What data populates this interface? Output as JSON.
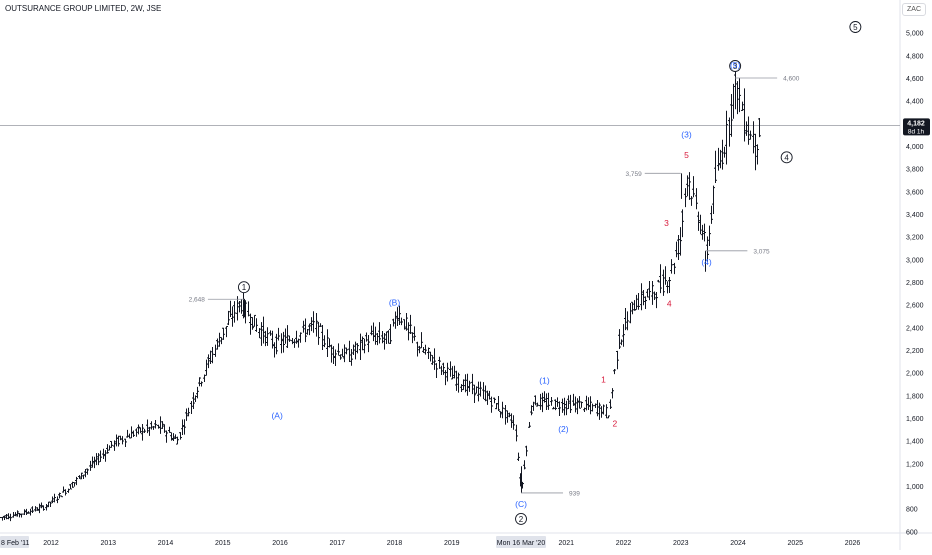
{
  "header": {
    "title": "OUTSURANCE GROUP LIMITED, 2W, JSE",
    "currency": "ZAC"
  },
  "colors": {
    "candle": "#131722",
    "blue_label": "#2962ff",
    "red_label": "#d81b3c",
    "axis_text": "#131722",
    "annotation_line": "#9598a1",
    "price_line": "#9598a1"
  },
  "chart_data": {
    "type": "line",
    "title": "OUTSURANCE GROUP LIMITED, 2W, JSE",
    "price_axis": {
      "ticks": [
        600,
        800,
        1000,
        1200,
        1400,
        1600,
        1800,
        2000,
        2200,
        2400,
        2600,
        2800,
        3000,
        3200,
        3400,
        3600,
        3800,
        4000,
        4200,
        4400,
        4600,
        4800,
        5000
      ],
      "tick_labels": [
        "600",
        "800",
        "1,000",
        "1,200",
        "1,400",
        "1,600",
        "1,800",
        "2,000",
        "2,200",
        "2,400",
        "2,600",
        "2,800",
        "3,000",
        "3,200",
        "3,400",
        "3,600",
        "3,800",
        "4,000",
        "4,200",
        "4,400",
        "4,600",
        "4,800",
        "5,000"
      ],
      "ylim": [
        600,
        5200
      ]
    },
    "time_axis": {
      "xlim": [
        2011.08,
        2027.4
      ],
      "ticks": [
        2012,
        2013,
        2014,
        2015,
        2016,
        2017,
        2018,
        2019,
        2021,
        2022,
        2023,
        2024,
        2025,
        2026
      ],
      "tick_labels": [
        "2012",
        "2013",
        "2014",
        "2015",
        "2016",
        "2017",
        "2018",
        "2019",
        "2021",
        "2022",
        "2023",
        "2024",
        "2025",
        "2026"
      ],
      "start_label": "8 Feb '11",
      "marker_label": "Mon 16 Mar '20"
    },
    "current_price": {
      "value": 4182,
      "label": "4,182",
      "countdown": "8d 1h"
    },
    "series": [
      {
        "x": [
          2011.1,
          2011.5,
          2011.9,
          2012.3,
          2012.7,
          2013.1,
          2013.5,
          2013.9,
          2014.2,
          2014.5,
          2014.8,
          2015.1,
          2015.3,
          2015.6,
          2015.9,
          2016.2,
          2016.6,
          2016.9,
          2017.2,
          2017.6,
          2017.9,
          2018.05,
          2018.4,
          2018.8,
          2019.2,
          2019.6,
          2019.9,
          2020.1,
          2020.21,
          2020.4,
          2020.8,
          2021.2,
          2021.6,
          2021.75,
          2021.9,
          2022.2,
          2022.5,
          2022.8,
          2023.0,
          2023.1,
          2023.35,
          2023.45,
          2023.6,
          2023.8,
          2023.95,
          2024.1,
          2024.3,
          2024.4
        ],
        "values": [
          720,
          760,
          820,
          980,
          1180,
          1380,
          1480,
          1530,
          1400,
          1800,
          2150,
          2450,
          2620,
          2400,
          2250,
          2300,
          2420,
          2200,
          2150,
          2320,
          2300,
          2540,
          2250,
          2050,
          1900,
          1800,
          1650,
          1550,
          939,
          1750,
          1720,
          1720,
          1680,
          1640,
          2250,
          2620,
          2700,
          2850,
          3200,
          3759,
          3300,
          3075,
          3700,
          4100,
          4600,
          4250,
          4000,
          4182
        ]
      }
    ],
    "annotations": {
      "price_labels": [
        {
          "x": 2015.37,
          "y": 2648,
          "label": "2,648"
        },
        {
          "x": 2023.0,
          "y": 3759,
          "label": "3,759"
        },
        {
          "x": 2023.43,
          "y": 3075,
          "label": "3,075"
        },
        {
          "x": 2023.95,
          "y": 4600,
          "label": "4,600"
        },
        {
          "x": 2020.21,
          "y": 939,
          "label": "939"
        }
      ],
      "primary_waves": [
        {
          "label": "1",
          "x": 2015.37,
          "y": 2648,
          "pos": "above"
        },
        {
          "label": "2",
          "x": 2020.21,
          "y": 939,
          "pos": "below"
        },
        {
          "label": "3",
          "x": 2023.95,
          "y": 4600,
          "pos": "above"
        },
        {
          "label": "4",
          "x": 2024.85,
          "y": 3900,
          "pos": "free"
        },
        {
          "label": "5",
          "x": 2026.05,
          "y": 5050,
          "pos": "free"
        }
      ],
      "blue_labels": [
        {
          "label": "(A)",
          "x": 2015.95,
          "y": 1720,
          "pos": "below"
        },
        {
          "label": "(B)",
          "x": 2018.0,
          "y": 2540,
          "pos": "above"
        },
        {
          "label": "(C)",
          "x": 2020.21,
          "y": 939,
          "pos": "below"
        },
        {
          "label": "(1)",
          "x": 2020.62,
          "y": 1850,
          "pos": "above"
        },
        {
          "label": "(2)",
          "x": 2020.95,
          "y": 1600,
          "pos": "below"
        },
        {
          "label": "(3)",
          "x": 2023.1,
          "y": 4020,
          "pos": "above"
        },
        {
          "label": "(4)",
          "x": 2023.45,
          "y": 3075,
          "pos": "below"
        },
        {
          "label": "(5)",
          "x": 2023.95,
          "y": 4600,
          "pos": "above"
        }
      ],
      "red_labels": [
        {
          "label": "1",
          "x": 2021.65,
          "y": 1880,
          "pos": "above"
        },
        {
          "label": "2",
          "x": 2021.85,
          "y": 1630,
          "pos": "below"
        },
        {
          "label": "3",
          "x": 2022.75,
          "y": 3260,
          "pos": "above"
        },
        {
          "label": "4",
          "x": 2022.8,
          "y": 2690,
          "pos": "below"
        },
        {
          "label": "5",
          "x": 2023.1,
          "y": 3860,
          "pos": "above"
        }
      ]
    }
  }
}
